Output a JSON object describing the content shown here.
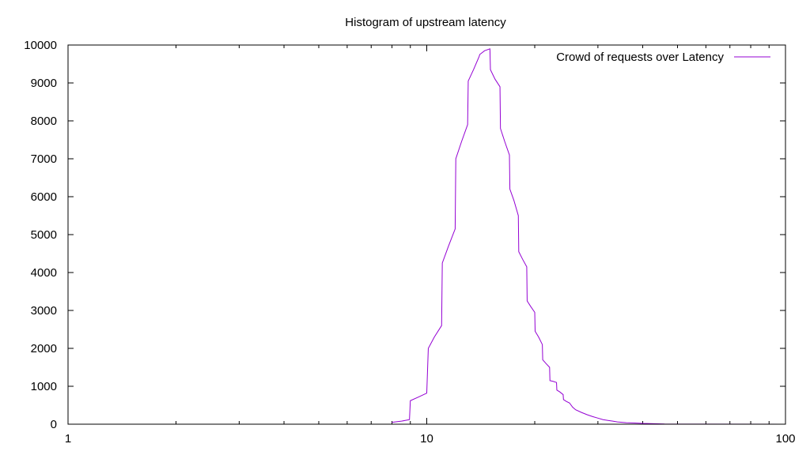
{
  "chart_data": {
    "type": "line",
    "title": "Histogram of upstream latency",
    "xlabel": "",
    "ylabel": "",
    "xscale": "log",
    "xlim": [
      1,
      100
    ],
    "ylim": [
      0,
      10000
    ],
    "x_ticks": [
      1,
      10,
      100
    ],
    "y_ticks": [
      0,
      1000,
      2000,
      3000,
      4000,
      5000,
      6000,
      7000,
      8000,
      9000,
      10000
    ],
    "grid": false,
    "legend_position": "top-right",
    "series": [
      {
        "name": "Crowd of requests over Latency",
        "color": "#9400d3",
        "x": [
          8.0,
          8.5,
          8.95,
          9.0,
          9.5,
          10.0,
          10.1,
          10.5,
          11.0,
          11.05,
          11.5,
          12.0,
          12.05,
          12.5,
          13.0,
          13.05,
          13.5,
          14.0,
          14.05,
          14.5,
          15.0,
          15.05,
          15.5,
          16.0,
          16.05,
          16.5,
          17.0,
          17.05,
          17.5,
          18.0,
          18.05,
          18.5,
          19.0,
          19.05,
          19.5,
          20.0,
          20.05,
          20.5,
          21.0,
          21.05,
          21.5,
          22.0,
          22.05,
          22.5,
          23.0,
          23.05,
          23.5,
          24.0,
          24.05,
          24.5,
          25.0,
          25.5,
          26.0,
          27.0,
          28.0,
          29.0,
          30.0,
          31.0,
          32.0,
          33.0,
          34.0,
          36.0,
          38.0,
          40.0,
          42.0,
          44.0,
          46.0,
          100.0
        ],
        "y": [
          50,
          80,
          120,
          620,
          720,
          820,
          2000,
          2300,
          2600,
          4250,
          4700,
          5150,
          7000,
          7450,
          7900,
          9050,
          9350,
          9700,
          9750,
          9850,
          9900,
          9350,
          9100,
          8900,
          7800,
          7450,
          7100,
          6200,
          5900,
          5500,
          4550,
          4350,
          4150,
          3250,
          3100,
          2950,
          2450,
          2300,
          2100,
          1700,
          1600,
          1500,
          1150,
          1130,
          1100,
          900,
          850,
          780,
          650,
          600,
          560,
          450,
          380,
          310,
          250,
          200,
          160,
          120,
          100,
          80,
          60,
          40,
          30,
          20,
          15,
          10,
          5,
          0
        ]
      }
    ]
  }
}
